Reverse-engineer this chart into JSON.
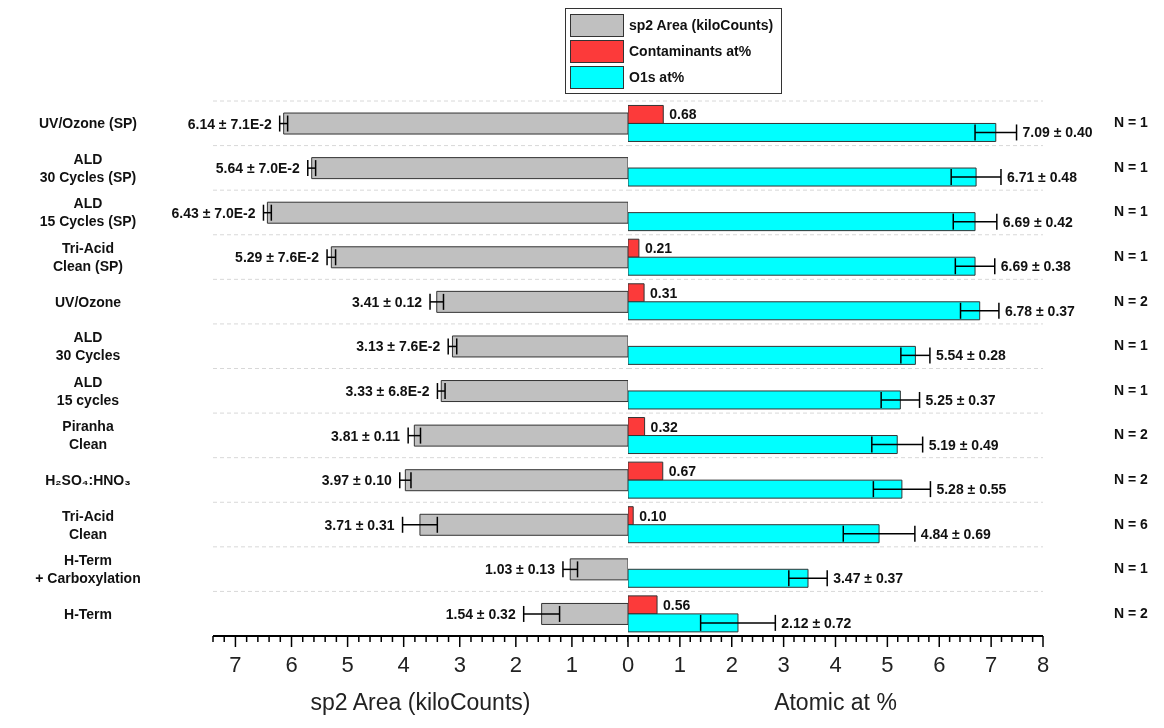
{
  "chart_data": [
    {
      "type": "bar",
      "orientation": "horizontal",
      "categories": [
        "UV/Ozone (SP)",
        "ALD\n30 Cycles (SP)",
        "ALD\n15 Cycles (SP)",
        "Tri-Acid\nClean (SP)",
        "UV/Ozone",
        "ALD\n30 Cycles",
        "ALD\n15 cycles",
        "Piranha\nClean",
        "H₂SO₄:HNO₃",
        "Tri-Acid\nClean",
        "H-Term\n+ Carboxylation",
        "H-Term"
      ],
      "series": [
        {
          "name": "sp2 Area (kiloCounts)",
          "color": "#c0c0c0",
          "values": [
            6.14,
            5.64,
            6.43,
            5.29,
            3.41,
            3.13,
            3.33,
            3.81,
            3.97,
            3.71,
            1.03,
            1.54
          ],
          "errors": [
            0.071,
            0.07,
            0.07,
            0.076,
            0.12,
            0.076,
            0.068,
            0.11,
            0.1,
            0.31,
            0.13,
            0.32
          ],
          "value_labels": [
            "6.14 ± 7.1E-2",
            "5.64 ± 7.0E-2",
            "6.43 ± 7.0E-2",
            "5.29 ± 7.6E-2",
            "3.41 ± 0.12",
            "3.13 ± 7.6E-2",
            "3.33 ± 6.8E-2",
            "3.81 ± 0.11",
            "3.97 ± 0.10",
            "3.71 ± 0.31",
            "1.03 ± 0.13",
            "1.54 ± 0.32"
          ]
        }
      ],
      "xlim": [
        7.4,
        0
      ],
      "xticks": [
        {
          "value": 7.4,
          "label": null
        },
        {
          "value": 7.2,
          "label": null
        },
        7,
        {
          "value": 6.8,
          "label": null
        },
        {
          "value": 6.6,
          "label": null
        },
        {
          "value": 6.4,
          "label": null
        },
        {
          "value": 6.2,
          "label": null
        },
        6,
        {
          "value": 5.8,
          "label": null
        },
        {
          "value": 5.6,
          "label": null
        },
        {
          "value": 5.4,
          "label": null
        },
        {
          "value": 5.2,
          "label": null
        },
        5,
        {
          "value": 4.8,
          "label": null
        },
        {
          "value": 4.6,
          "label": null
        },
        {
          "value": 4.4,
          "label": null
        },
        {
          "value": 4.2,
          "label": null
        },
        4,
        {
          "value": 3.8,
          "label": null
        },
        {
          "value": 3.6,
          "label": null
        },
        {
          "value": 3.4,
          "label": null
        },
        {
          "value": 3.2,
          "label": null
        },
        3,
        {
          "value": 2.8,
          "label": null
        },
        {
          "value": 2.6,
          "label": null
        },
        {
          "value": 2.4,
          "label": null
        },
        {
          "value": 2.2,
          "label": null
        },
        2,
        {
          "value": 1.8,
          "label": null
        },
        {
          "value": 1.6,
          "label": null
        },
        {
          "value": 1.4,
          "label": null
        },
        {
          "value": 1.2,
          "label": null
        },
        1,
        {
          "value": 0.8,
          "label": null
        },
        {
          "value": 0.6,
          "label": null
        },
        {
          "value": 0.4,
          "label": null
        },
        {
          "value": 0.2,
          "label": null
        },
        {
          "value": 0,
          "label": null
        }
      ],
      "xlabel": "sp2 Area (kiloCounts)",
      "grid": "y",
      "legend": "top"
    },
    {
      "type": "bar",
      "orientation": "horizontal",
      "series": [
        {
          "name": "Contaminants at%",
          "color": "#fc3a3a",
          "values": [
            0.68,
            null,
            null,
            0.21,
            0.31,
            null,
            null,
            0.32,
            0.67,
            0.1,
            null,
            0.56
          ],
          "value_labels": [
            "0.68",
            null,
            null,
            "0.21",
            "0.31",
            null,
            null,
            "0.32",
            "0.67",
            "0.10",
            null,
            "0.56"
          ]
        },
        {
          "name": "O1s at%",
          "color": "#00ffff",
          "values": [
            7.09,
            6.71,
            6.69,
            6.69,
            6.78,
            5.54,
            5.25,
            5.19,
            5.28,
            4.84,
            3.47,
            2.12
          ],
          "errors": [
            0.4,
            0.48,
            0.42,
            0.38,
            0.37,
            0.28,
            0.37,
            0.49,
            0.55,
            0.69,
            0.37,
            0.72
          ],
          "value_labels": [
            "7.09 ± 0.40",
            "6.71 ± 0.48",
            "6.69 ± 0.42",
            "6.69 ± 0.38",
            "6.78 ± 0.37",
            "5.54 ± 0.28",
            "5.25 ± 0.37",
            "5.19 ± 0.49",
            "5.28 ± 0.55",
            "4.84 ± 0.69",
            "3.47 ± 0.37",
            "2.12 ± 0.72"
          ]
        }
      ],
      "xlim": [
        0,
        8
      ],
      "xticks": [
        0,
        {
          "value": 0.2,
          "label": null
        },
        {
          "value": 0.4,
          "label": null
        },
        {
          "value": 0.6,
          "label": null
        },
        {
          "value": 0.8,
          "label": null
        },
        1,
        {
          "value": 1.2,
          "label": null
        },
        {
          "value": 1.4,
          "label": null
        },
        {
          "value": 1.6,
          "label": null
        },
        {
          "value": 1.8,
          "label": null
        },
        2,
        {
          "value": 2.2,
          "label": null
        },
        {
          "value": 2.4,
          "label": null
        },
        {
          "value": 2.6,
          "label": null
        },
        {
          "value": 2.8,
          "label": null
        },
        3,
        {
          "value": 3.2,
          "label": null
        },
        {
          "value": 3.4,
          "label": null
        },
        {
          "value": 3.6,
          "label": null
        },
        {
          "value": 3.8,
          "label": null
        },
        4,
        {
          "value": 4.2,
          "label": null
        },
        {
          "value": 4.4,
          "label": null
        },
        {
          "value": 4.6,
          "label": null
        },
        {
          "value": 4.8,
          "label": null
        },
        5,
        {
          "value": 5.2,
          "label": null
        },
        {
          "value": 5.4,
          "label": null
        },
        {
          "value": 5.6,
          "label": null
        },
        {
          "value": 5.8,
          "label": null
        },
        6,
        {
          "value": 6.2,
          "label": null
        },
        {
          "value": 6.4,
          "label": null
        },
        {
          "value": 6.6,
          "label": null
        },
        {
          "value": 6.8,
          "label": null
        },
        7,
        {
          "value": 7.2,
          "label": null
        },
        {
          "value": 7.4,
          "label": null
        },
        {
          "value": 7.6,
          "label": null
        },
        {
          "value": 7.8,
          "label": null
        },
        8
      ],
      "xlabel": "Atomic at %",
      "grid": "y",
      "legend": "top",
      "tick_labels": "x",
      "annotations": [
        "N = 1",
        "N = 1",
        "N = 1",
        "N = 1",
        "N = 2",
        "N = 1",
        "N = 1",
        "N = 2",
        "N = 2",
        "N = 6",
        "N = 1",
        "N = 2"
      ]
    }
  ]
}
